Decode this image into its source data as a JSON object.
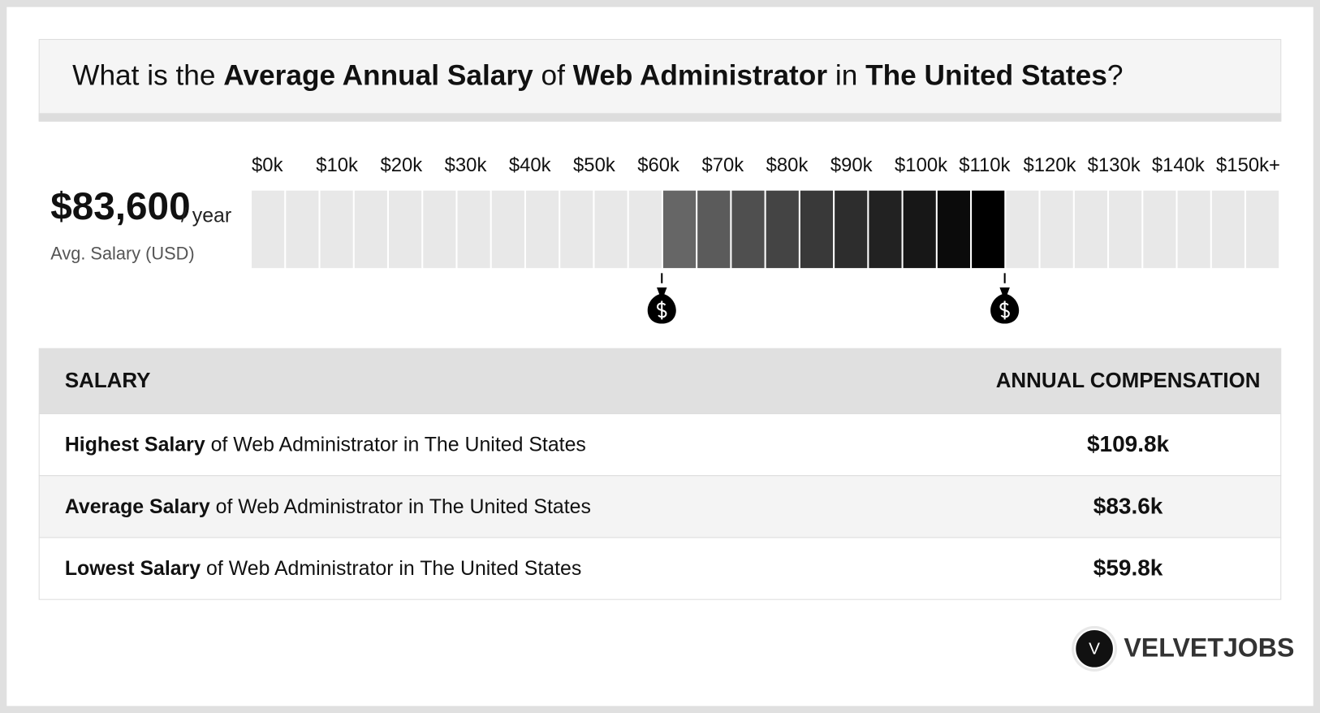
{
  "header": {
    "title": [
      {
        "text": "What is the "
      },
      {
        "text": "Average Annual Salary",
        "bold": true
      },
      {
        "text": " of "
      },
      {
        "text": "Web Administrator",
        "bold": true
      },
      {
        "text": " in "
      },
      {
        "text": "The United States",
        "bold": true
      },
      {
        "text": "?"
      }
    ]
  },
  "summary": {
    "value": "$83,600",
    "unit": "/ year",
    "caption": "Avg. Salary (USD)"
  },
  "salary_scale": {
    "xlim": [
      0,
      150
    ],
    "ticks": [
      {
        "value": 0,
        "label": "$0k"
      },
      {
        "value": 10,
        "label": "$10k"
      },
      {
        "value": 20,
        "label": "$20k"
      },
      {
        "value": 30,
        "label": "$30k"
      },
      {
        "value": 40,
        "label": "$40k"
      },
      {
        "value": 50,
        "label": "$50k"
      },
      {
        "value": 60,
        "label": "$60k"
      },
      {
        "value": 70,
        "label": "$70k"
      },
      {
        "value": 80,
        "label": "$80k"
      },
      {
        "value": 90,
        "label": "$90k"
      },
      {
        "value": 100,
        "label": "$100k"
      },
      {
        "value": 110,
        "label": "$110k"
      },
      {
        "value": 120,
        "label": "$120k"
      },
      {
        "value": 130,
        "label": "$130k"
      },
      {
        "value": 140,
        "label": "$140k"
      },
      {
        "value": 150,
        "label": "$150k+"
      }
    ],
    "low": 59.8,
    "high": 109.8
  },
  "table": {
    "header": [
      "SALARY",
      "ANNUAL COMPENSATION"
    ],
    "rows": [
      {
        "bold": "Highest Salary",
        "rest": " of Web Administrator in The United States",
        "value": "$109.8k"
      },
      {
        "bold": "Average Salary",
        "rest": " of Web Administrator in The United States",
        "value": "$83.6k"
      },
      {
        "bold": "Lowest Salary",
        "rest": " of Web Administrator in The United States",
        "value": "$59.8k"
      }
    ]
  },
  "logo": {
    "icon": "V",
    "text": "VELVETJOBS"
  }
}
